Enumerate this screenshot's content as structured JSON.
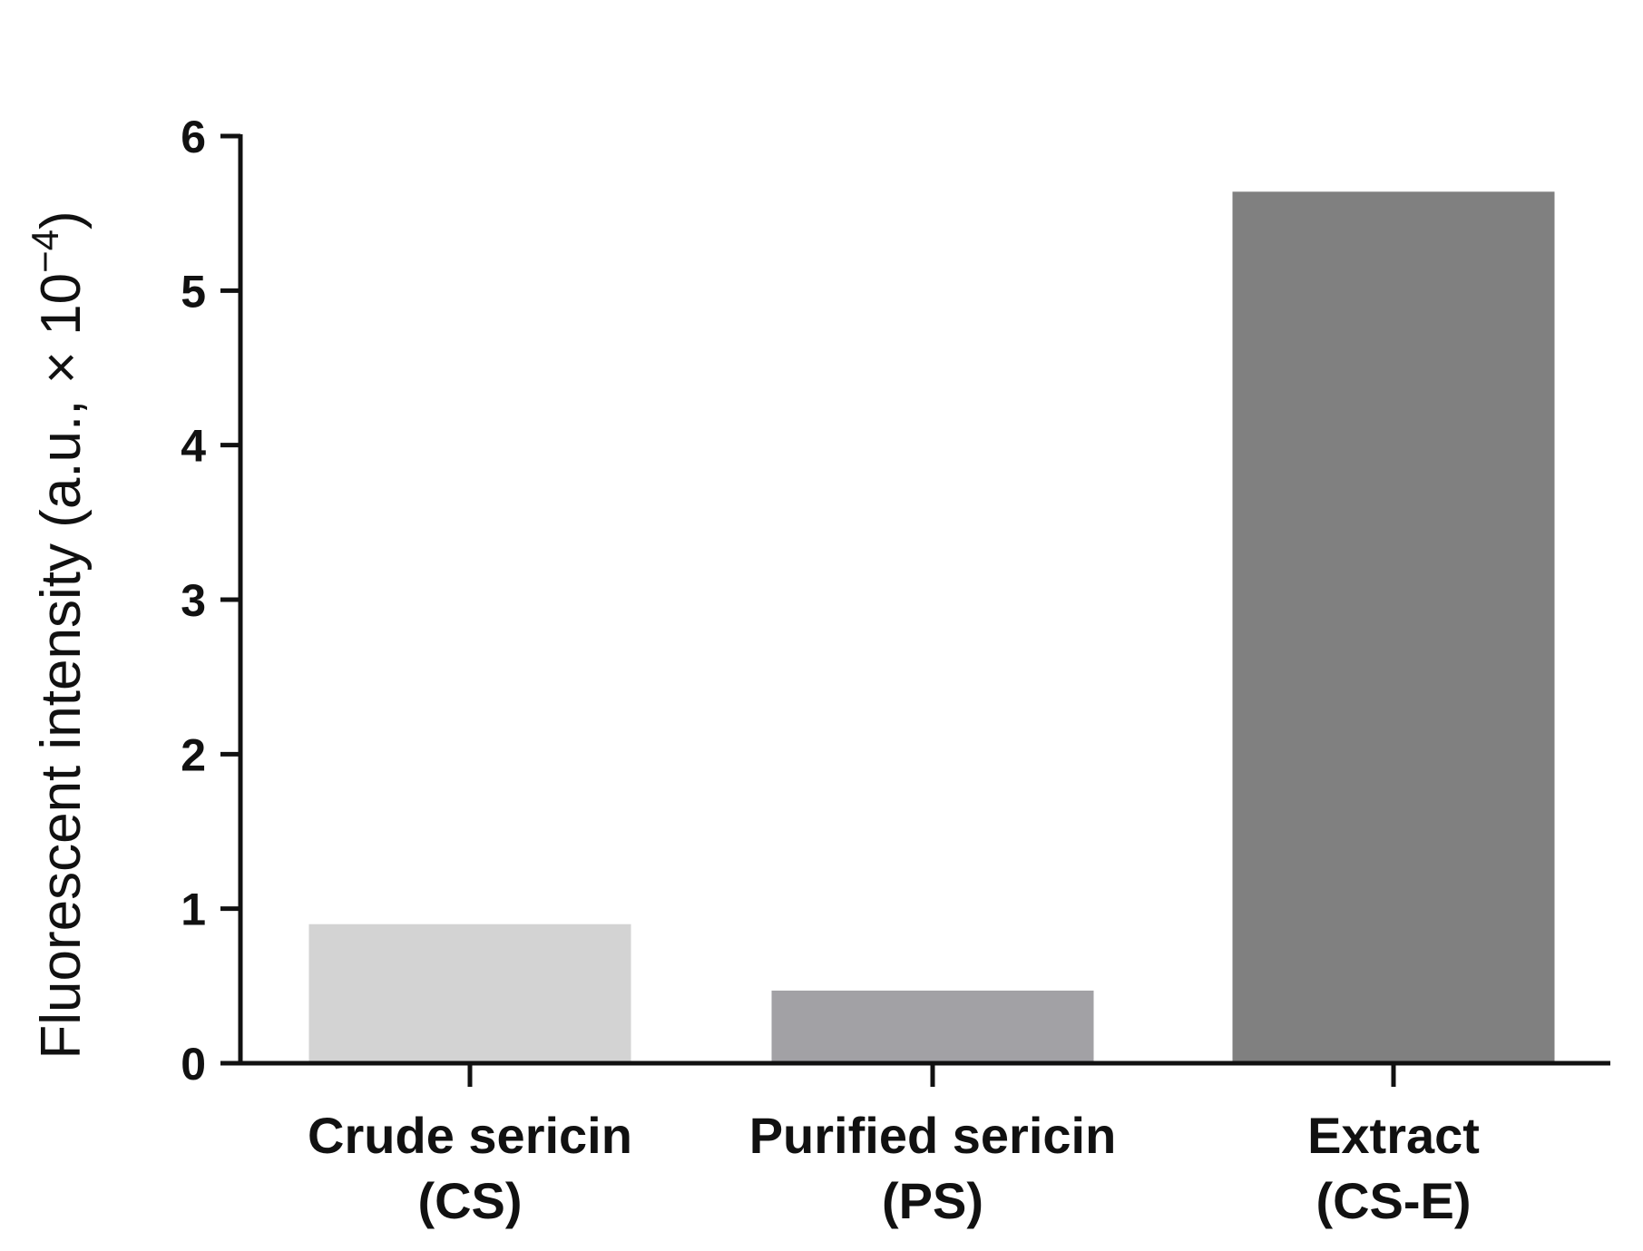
{
  "chart_data": {
    "type": "bar",
    "categories": [
      {
        "line1": "Crude sericin",
        "line2": "(CS)"
      },
      {
        "line1": "Purified sericin",
        "line2": "(PS)"
      },
      {
        "line1": "Extract",
        "line2": "(CS-E)"
      }
    ],
    "values": [
      0.9,
      0.47,
      5.64
    ],
    "colors": [
      "#d3d3d3",
      "#a2a1a5",
      "#808080"
    ],
    "ylabel": {
      "main": "Fluorescent intensity (a.u., × 10",
      "superscript": "−4",
      "close": ")"
    },
    "ylim": [
      0,
      6
    ],
    "yticks": [
      "0",
      "1",
      "2",
      "3",
      "4",
      "5",
      "6"
    ],
    "grid": false
  }
}
